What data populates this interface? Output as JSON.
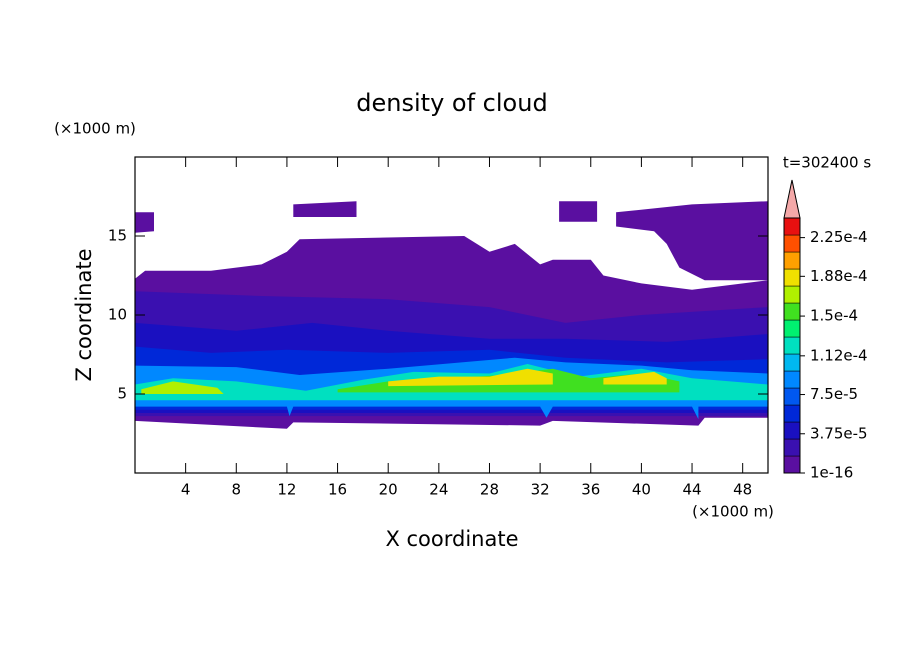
{
  "chart_data": {
    "type": "contour",
    "title": "density of cloud",
    "x_label": "X coordinate",
    "y_label": "Z coordinate",
    "x_unit": "(×1000 m)",
    "y_unit": "(×1000 m)",
    "time_label": "t=302400 s",
    "xlim": [
      0,
      50
    ],
    "xticks": [
      4,
      8,
      12,
      16,
      20,
      24,
      28,
      32,
      36,
      40,
      44,
      48
    ],
    "ylim": [
      0,
      20
    ],
    "yticks": [
      5,
      10,
      15
    ],
    "colorbar": {
      "clim": [
        1e-16,
        0.00024375
      ],
      "ticks": [
        1e-16,
        {
          "value": 3.75e-05,
          "label": "3.75e-5"
        },
        {
          "value": 7.5e-05,
          "label": "7.5e-5"
        },
        {
          "value": 0.000112,
          "label": "1.12e-4"
        },
        {
          "value": 0.00015,
          "label": "1.5e-4"
        },
        {
          "value": 0.000188,
          "label": "1.88e-4"
        },
        {
          "value": 0.000225,
          "label": "2.25e-4"
        }
      ],
      "colors": [
        "#5a0fa0",
        "#3a10b0",
        "#1a10c0",
        "#0028d8",
        "#0058f0",
        "#0088ff",
        "#00b8f0",
        "#00e0c0",
        "#00f070",
        "#40e020",
        "#b0f000",
        "#f0e000",
        "#ffa000",
        "#ff5000",
        "#e81010"
      ],
      "extend_color": "#f4a8a8"
    }
  }
}
